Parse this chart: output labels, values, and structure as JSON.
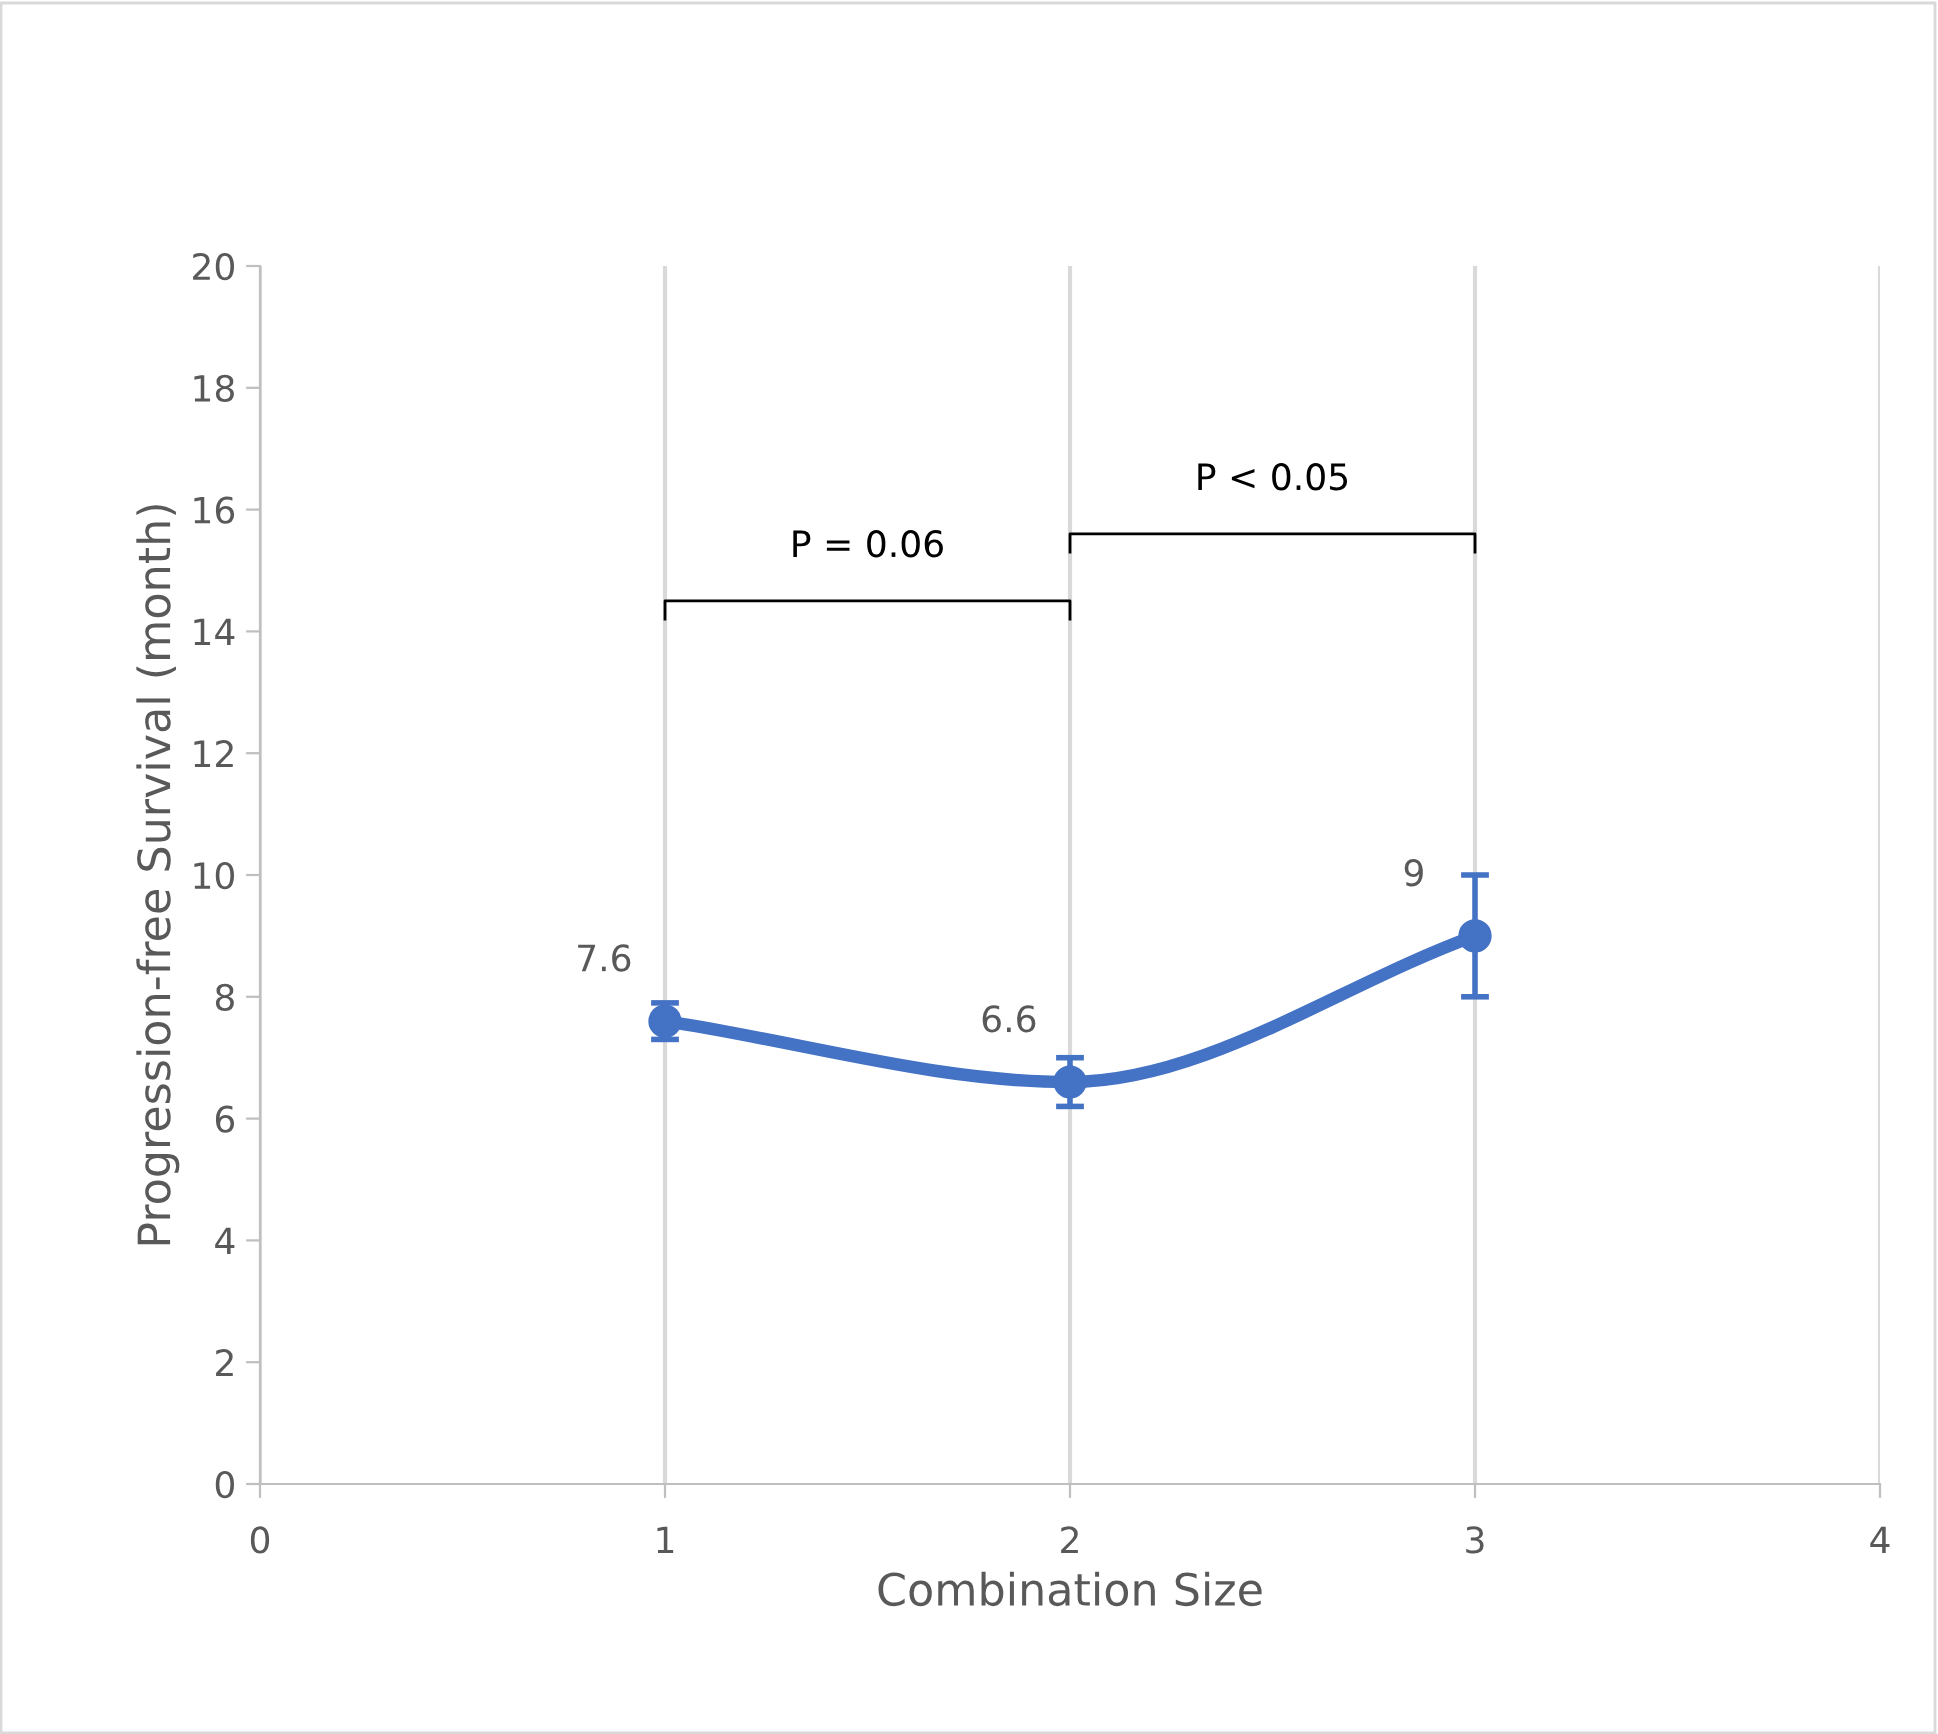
{
  "chart_data": {
    "type": "line",
    "xlabel": "Combination Size",
    "ylabel": "Progression-free Survival (month)",
    "x": [
      1,
      2,
      3
    ],
    "series": [
      {
        "color": "#4472c4",
        "values": [
          7.6,
          6.6,
          9
        ],
        "errors": [
          0.3,
          0.4,
          1.0
        ]
      }
    ],
    "xlim": [
      0,
      4
    ],
    "xticks": [
      0,
      1,
      2,
      3,
      4
    ],
    "ylim": [
      0,
      20
    ],
    "yticks": [
      0,
      2,
      4,
      6,
      8,
      10,
      12,
      14,
      16,
      18,
      20
    ],
    "grid": "x",
    "marker": "circle",
    "line_style": "solid",
    "data_labels": true,
    "annotations": [
      "P = 0.06",
      "P < 0.05"
    ]
  }
}
